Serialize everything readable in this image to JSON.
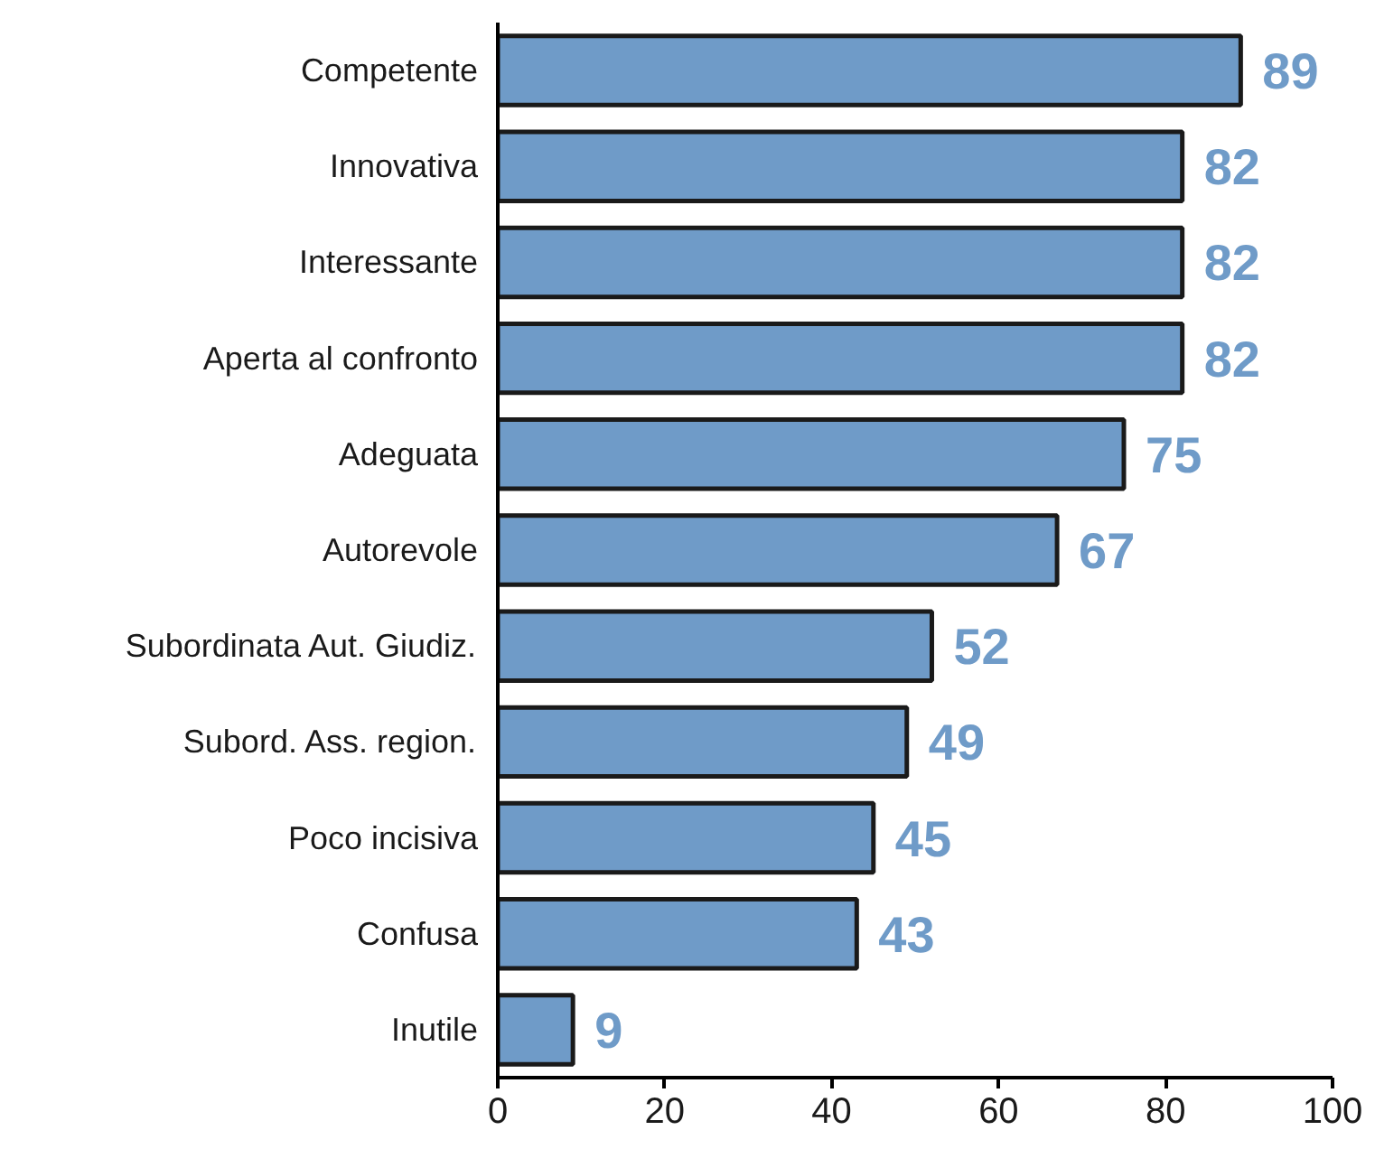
{
  "chart_data": {
    "type": "bar",
    "orientation": "horizontal",
    "categories": [
      "Competente",
      "Innovativa",
      "Interessante",
      "Aperta al confronto",
      "Adeguata",
      "Autorevole",
      "Subordinata Aut. Giudiz.",
      "Subord. Ass. region.",
      "Poco incisiva",
      "Confusa",
      "Inutile"
    ],
    "values": [
      89,
      82,
      82,
      82,
      75,
      67,
      52,
      49,
      45,
      43,
      9
    ],
    "color": "#6f9bc8",
    "xlim": [
      0,
      100
    ],
    "xticks": [
      0,
      20,
      40,
      60,
      80,
      100
    ],
    "data_labels": true,
    "grid": false
  }
}
